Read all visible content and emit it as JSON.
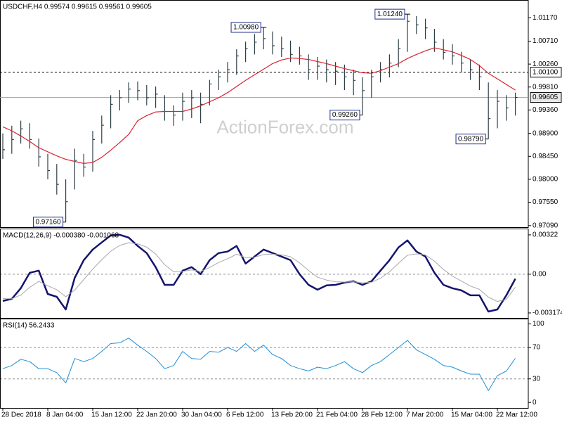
{
  "chart_data": [
    {
      "type": "ohlc",
      "title": "USDCHF,H4  0.99574 0.99615 0.99561 0.99605",
      "watermark": "ActionForex.com",
      "color": "#2e4048",
      "ylim": [
        0.9706,
        1.0149
      ],
      "yticks": [
        {
          "value": 1.0117,
          "label": "1.01170"
        },
        {
          "value": 1.0071,
          "label": "1.00710"
        },
        {
          "value": 1.0026,
          "label": "1.00260"
        },
        {
          "value": 0.9981,
          "label": "0.99810"
        },
        {
          "value": 0.9936,
          "label": "0.99360"
        },
        {
          "value": 0.989,
          "label": "0.98900"
        },
        {
          "value": 0.9845,
          "label": "0.98450"
        },
        {
          "value": 0.98,
          "label": "0.98000"
        },
        {
          "value": 0.9755,
          "label": "0.97550"
        },
        {
          "value": 0.9709,
          "label": "0.97090"
        }
      ],
      "high": [
        0.989,
        0.9905,
        0.9915,
        0.991,
        0.988,
        0.985,
        0.983,
        0.98,
        0.986,
        0.985,
        0.9895,
        0.9925,
        0.9965,
        0.9975,
        0.999,
        0.9992,
        0.9985,
        0.9982,
        0.9965,
        0.9945,
        0.997,
        0.9975,
        0.997,
        0.9995,
        1.0015,
        1.003,
        1.0055,
        1.007,
        1.0085,
        1.0098,
        1.009,
        1.008,
        1.0072,
        1.006,
        1.0045,
        1.004,
        1.0035,
        1.003,
        1.0025,
        1.0015,
        1.0,
        1.0015,
        1.003,
        1.0045,
        1.0075,
        1.0124,
        1.012,
        1.0115,
        1.0095,
        1.0075,
        1.0065,
        1.005,
        1.0035,
        1.0025,
        0.999,
        0.9975,
        0.9965,
        0.997
      ],
      "low": [
        0.984,
        0.985,
        0.987,
        0.986,
        0.9825,
        0.98,
        0.977,
        0.9716,
        0.978,
        0.9805,
        0.9815,
        0.987,
        0.99,
        0.9935,
        0.995,
        0.9955,
        0.9945,
        0.994,
        0.9915,
        0.9905,
        0.9915,
        0.992,
        0.991,
        0.9945,
        0.9975,
        0.999,
        1.0005,
        1.003,
        1.0045,
        1.0055,
        1.0045,
        1.004,
        1.003,
        1.0025,
        0.9995,
        0.9995,
        0.999,
        0.9985,
        0.9975,
        0.9965,
        0.9926,
        0.996,
        0.999,
        1.0,
        1.002,
        1.005,
        1.0085,
        1.0075,
        1.005,
        1.0035,
        1.0025,
        1.001,
        0.9995,
        0.9975,
        0.9879,
        0.99,
        0.9915,
        0.9925
      ],
      "close": [
        0.9858,
        0.9878,
        0.9899,
        0.9878,
        0.9844,
        0.9817,
        0.979,
        0.9756,
        0.9837,
        0.9824,
        0.9878,
        0.9906,
        0.9947,
        0.996,
        0.9977,
        0.9974,
        0.996,
        0.9967,
        0.9933,
        0.9926,
        0.9953,
        0.996,
        0.9947,
        0.9987,
        1.0001,
        1.0015,
        1.0042,
        1.0056,
        1.0069,
        1.0076,
        1.0062,
        1.0056,
        1.0045,
        1.0042,
        1.0015,
        1.0022,
        1.0015,
        1.0012,
        1.0001,
        0.9994,
        0.9974,
        1.0001,
        1.0015,
        1.0028,
        1.0056,
        1.011,
        1.0103,
        1.0097,
        1.0069,
        1.0049,
        1.0042,
        1.0028,
        1.0015,
        1.0001,
        0.9919,
        0.9953,
        0.994,
        0.99605
      ],
      "series": [
        {
          "color": "#d9232d",
          "values": [
            0.9903,
            0.9895,
            0.9885,
            0.9874,
            0.9862,
            0.9854,
            0.9846,
            0.9839,
            0.9835,
            0.9831,
            0.9833,
            0.9843,
            0.9857,
            0.9872,
            0.9888,
            0.9915,
            0.9925,
            0.9932,
            0.9933,
            0.9933,
            0.9933,
            0.9938,
            0.9944,
            0.9952,
            0.996,
            0.997,
            0.9982,
            0.9994,
            1.0005,
            1.0016,
            1.0027,
            1.0034,
            1.0038,
            1.0037,
            1.0035,
            1.0031,
            1.0027,
            1.0022,
            1.0017,
            1.0013,
            1.0009,
            1.0008,
            1.0013,
            1.002,
            1.0027,
            1.0037,
            1.0045,
            1.0052,
            1.0058,
            1.0054,
            1.005,
            1.0043,
            1.0035,
            1.0023,
            1.0008,
            0.9997,
            0.9986,
            0.9975
          ]
        }
      ],
      "annotations": [
        {
          "index": 7,
          "value": 0.9716,
          "label": "0.97160"
        },
        {
          "index": 29,
          "value": 1.0098,
          "label": "1.00980"
        },
        {
          "index": 40,
          "value": 0.9926,
          "label": "0.99260"
        },
        {
          "index": 45,
          "value": 1.0124,
          "label": "1.01240"
        },
        {
          "index": 54,
          "value": 0.9879,
          "label": "0.98790"
        }
      ],
      "levels": [
        {
          "value": 1.001,
          "label": "1.00100",
          "dashed": true
        },
        {
          "value": 0.99605,
          "label": "0.99605",
          "dashed": false
        }
      ]
    },
    {
      "type": "line",
      "title": "MACD(12,26,9) -0.000380 -0.001068",
      "ylim": [
        -0.00358,
        0.00362
      ],
      "yticks": [
        {
          "value": 0.00322,
          "label": "0.00322"
        },
        {
          "value": 0,
          "label": "0.00"
        },
        {
          "value": -0.003174,
          "label": "-0.003174"
        }
      ],
      "levels": [
        {
          "value": 0,
          "dashed": true
        }
      ],
      "series": [
        {
          "color": "#14146e",
          "width": 2.5,
          "values": [
            -0.00219,
            -0.00202,
            -0.00115,
            0.00012,
            0.00029,
            -0.00162,
            -0.00185,
            -0.00289,
            -0.00029,
            0.00115,
            0.00202,
            0.0026,
            0.00317,
            0.00323,
            0.003,
            0.00231,
            0.00173,
            0.00058,
            -0.00087,
            -0.00087,
            0.00029,
            0.00058,
            0,
            0.00115,
            0.00173,
            0.00185,
            0.00231,
            0.00087,
            0.00144,
            0.00202,
            0.00173,
            0.00144,
            0.00115,
            0,
            -0.00087,
            -0.00127,
            -0.00092,
            -0.00087,
            -0.00069,
            -0.00058,
            -0.00087,
            -0.00058,
            0.00029,
            0.00115,
            0.00219,
            0.00277,
            0.00185,
            0.00144,
            0.00012,
            -0.00087,
            -0.00115,
            -0.00133,
            -0.00173,
            -0.00173,
            -0.00306,
            -0.00289,
            -0.00173,
            -0.00038
          ]
        },
        {
          "color": "#a8a8a8",
          "width": 1,
          "values": [
            -0.002,
            -0.00201,
            -0.00171,
            -0.00107,
            -0.00059,
            -0.00095,
            -0.00127,
            -0.00184,
            -0.0013,
            -0.00044,
            0.00042,
            0.00118,
            0.00188,
            0.00235,
            0.00258,
            0.00249,
            0.00222,
            0.00165,
            0.00077,
            0.0002,
            0.00023,
            0.00035,
            0.00023,
            0.00055,
            0.00096,
            0.00127,
            0.00163,
            0.00136,
            0.00139,
            0.00161,
            0.00165,
            0.00158,
            0.00143,
            0.00093,
            0.0003,
            -0.00025,
            -0.00048,
            -0.00062,
            -0.00064,
            -0.00062,
            -0.00071,
            -0.00066,
            -0.00033,
            0.00019,
            0.00089,
            0.00155,
            0.00166,
            0.00158,
            0.00107,
            0.00039,
            -0.00015,
            -0.00056,
            -0.00097,
            -0.00124,
            -0.00188,
            -0.00223,
            -0.00206,
            -0.001068
          ]
        }
      ]
    },
    {
      "type": "line",
      "title": "RSI(14) 56.2433",
      "ylim": [
        -7,
        105
      ],
      "yticks": [
        100,
        70,
        30,
        0
      ],
      "levels": [
        {
          "value": 70,
          "dashed": true
        },
        {
          "value": 30,
          "dashed": true
        }
      ],
      "categories": [
        "28 Dec 2018",
        null,
        null,
        null,
        null,
        "8 Jan 04:00",
        null,
        null,
        null,
        null,
        "15 Jan 12:00",
        null,
        null,
        null,
        null,
        "22 Jan 20:00",
        null,
        null,
        null,
        null,
        "30 Jan 04:00",
        null,
        null,
        null,
        null,
        "6 Feb 12:00",
        null,
        null,
        null,
        null,
        "13 Feb 20:00",
        null,
        null,
        null,
        null,
        "21 Feb 04:00",
        null,
        null,
        null,
        null,
        "28 Feb 12:00",
        null,
        null,
        null,
        null,
        "7 Mar 20:00",
        null,
        null,
        null,
        null,
        "15 Mar 04:00",
        null,
        null,
        null,
        null,
        "22 Mar 12:00",
        null,
        null
      ],
      "series": [
        {
          "color": "#1e8fd6",
          "width": 1,
          "values": [
            43,
            47,
            55,
            52,
            43,
            43,
            38,
            25,
            56,
            52,
            56,
            65,
            75,
            76,
            82,
            73,
            65,
            56,
            43,
            47,
            65,
            56,
            55,
            65,
            64,
            70,
            65,
            75,
            65,
            73,
            61,
            56,
            47,
            43,
            40,
            45,
            43,
            47,
            52,
            43,
            38,
            47,
            52,
            61,
            70,
            79,
            67,
            61,
            55,
            47,
            45,
            40,
            36,
            36,
            15,
            34,
            40,
            56.2433
          ]
        }
      ]
    }
  ]
}
